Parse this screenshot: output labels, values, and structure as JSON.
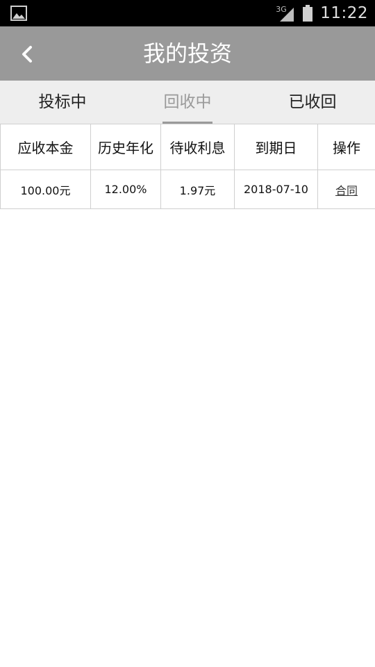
{
  "status_bar": {
    "network": "3G",
    "time": "11:22"
  },
  "header": {
    "title": "我的投资"
  },
  "tabs": [
    {
      "label": "投标中",
      "active": false
    },
    {
      "label": "回收中",
      "active": true
    },
    {
      "label": "已收回",
      "active": false
    }
  ],
  "table": {
    "columns": [
      "应收本金",
      "历史年化",
      "待收利息",
      "到期日",
      "操作"
    ],
    "rows": [
      {
        "principal": "100.00元",
        "rate": "12.00%",
        "interest": "1.97元",
        "due_date": "2018-07-10",
        "action": "合同"
      }
    ]
  },
  "colors": {
    "status_bar_bg": "#000000",
    "app_bar_bg": "#999999",
    "tab_bar_bg": "#eeeeee",
    "active_tab": "#9a9a9a"
  }
}
